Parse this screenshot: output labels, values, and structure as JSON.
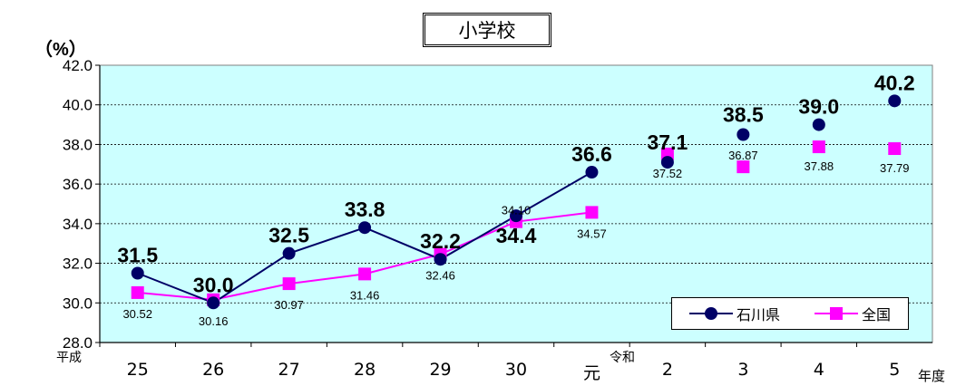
{
  "chart_data": {
    "type": "line",
    "title": "小学校",
    "ylabel": "（%）",
    "xunit": "年度",
    "ylim": [
      28.0,
      42.0
    ],
    "yticks": [
      "28.0",
      "30.0",
      "32.0",
      "34.0",
      "36.0",
      "38.0",
      "40.0",
      "42.0"
    ],
    "categories": [
      "25",
      "26",
      "27",
      "28",
      "29",
      "30",
      "元",
      "2",
      "3",
      "4",
      "5"
    ],
    "era_labels": {
      "heisei": "平成",
      "reiwa": "令和"
    },
    "series": [
      {
        "name": "石川県",
        "color": "#000066",
        "marker": "circle",
        "values": [
          31.5,
          30.0,
          32.5,
          33.8,
          32.2,
          34.4,
          36.6,
          37.1,
          38.5,
          39.0,
          40.2
        ],
        "labels": [
          "31.5",
          "30.0",
          "32.5",
          "33.8",
          "32.2",
          "34.4",
          "36.6",
          "37.1",
          "38.5",
          "39.0",
          "40.2"
        ]
      },
      {
        "name": "全国",
        "color": "#ff00ff",
        "marker": "square",
        "values": [
          30.52,
          30.16,
          30.97,
          31.46,
          32.46,
          34.1,
          34.57,
          37.52,
          36.87,
          37.88,
          37.79
        ],
        "labels": [
          "30.52",
          "30.16",
          "30.97",
          "31.46",
          "32.46",
          "34.10",
          "34.57",
          "37.52",
          "36.87",
          "37.88",
          "37.79"
        ]
      }
    ],
    "plot_background": "#ccffff",
    "grid": true,
    "legend": "bottom-right"
  }
}
